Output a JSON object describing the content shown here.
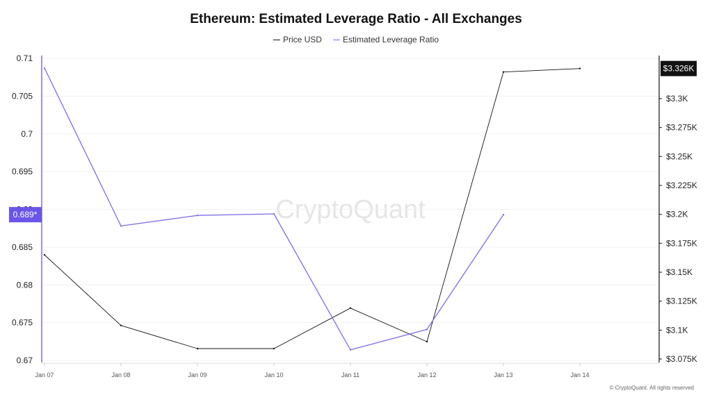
{
  "chart_data": {
    "type": "line",
    "title": "Ethereum: Estimated Leverage Ratio - All Exchanges",
    "x": [
      "Jan 07",
      "Jan 08",
      "Jan 09",
      "Jan 10",
      "Jan 11",
      "Jan 12",
      "Jan 13",
      "Jan 14"
    ],
    "series": [
      {
        "name": "Price USD",
        "axis": "right",
        "color": "#111111",
        "values": [
          3165,
          3104,
          3084,
          3084,
          3119,
          3090,
          3323,
          3326
        ]
      },
      {
        "name": "Estimated Leverage Ratio",
        "axis": "left",
        "color": "#7b6ee6",
        "values": [
          0.7087,
          0.6878,
          0.6892,
          0.6894,
          0.6714,
          0.6741,
          0.6893,
          null
        ]
      }
    ],
    "y_left": {
      "ylim": [
        0.67,
        0.71
      ],
      "ticks": [
        "0.67",
        "0.675",
        "0.68",
        "0.685",
        "0.69",
        "0.695",
        "0.7",
        "0.705",
        "0.71"
      ],
      "current_label": "0.689*",
      "current_value": 0.6893,
      "badge_color": "#6a55e8"
    },
    "y_right": {
      "ylim": [
        3075,
        3340
      ],
      "tick_values": [
        3075,
        3100,
        3125,
        3150,
        3175,
        3200,
        3225,
        3250,
        3275,
        3300
      ],
      "ticks": [
        "$3.075K",
        "$3.1K",
        "$3.125K",
        "$3.15K",
        "$3.175K",
        "$3.2K",
        "$3.225K",
        "$3.25K",
        "$3.275K",
        "$3.3K"
      ],
      "current_label": "$3.326K",
      "current_value": 3326,
      "badge_color": "#111111"
    },
    "watermark": "CryptoQuant",
    "credit": "© CryptoQuant. All rights reserved",
    "grid": true,
    "legend": "top-center"
  }
}
